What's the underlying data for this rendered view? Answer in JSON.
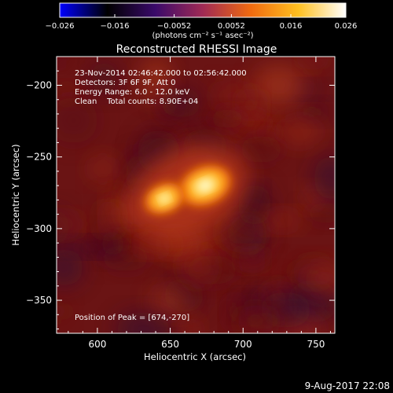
{
  "chart_data": {
    "type": "heatmap",
    "title": "Reconstructed RHESSI Image",
    "xlabel": "Heliocentric X (arcsec)",
    "ylabel": "Heliocentric Y (arcsec)",
    "xlim": [
      572,
      763
    ],
    "ylim": [
      -373,
      -180
    ],
    "x_ticks": [
      600,
      650,
      700,
      750
    ],
    "x_tick_labels": [
      "600",
      "650",
      "700",
      "750"
    ],
    "y_ticks": [
      -200,
      -250,
      -300,
      -350
    ],
    "y_tick_labels": [
      "−200",
      "−250",
      "−300",
      "−350"
    ],
    "colorbar": {
      "range": [
        -0.026,
        0.026
      ],
      "ticks": [
        -0.026,
        -0.016,
        -0.0052,
        0.0052,
        0.016,
        0.026
      ],
      "tick_labels": [
        "−0.026",
        "−0.016",
        "−0.0052",
        "0.0052",
        "0.016",
        "0.026"
      ],
      "units_label": "(photons cm⁻² s⁻¹ asec⁻²)",
      "colormap": [
        "#0000ff",
        "#000000",
        "#3a0a6a",
        "#a02a55",
        "#f06a10",
        "#ffc020",
        "#ffffff"
      ]
    },
    "annotations": {
      "time_range": "23-Nov-2014 02:46:42.000 to 02:56:42.000",
      "detectors": "Detectors: 3F 6F 9F, Att 0",
      "energy": "Energy Range: 6.0 - 12.0 keV",
      "clean": "Clean    Total counts: 8.90E+04",
      "peak": "Position of Peak = [674,-270]"
    },
    "sources": [
      {
        "x": 674,
        "y": -270,
        "peak": 0.026
      },
      {
        "x": 646,
        "y": -279,
        "peak": 0.022
      }
    ],
    "footer_date": "9-Aug-2017 22:08"
  }
}
